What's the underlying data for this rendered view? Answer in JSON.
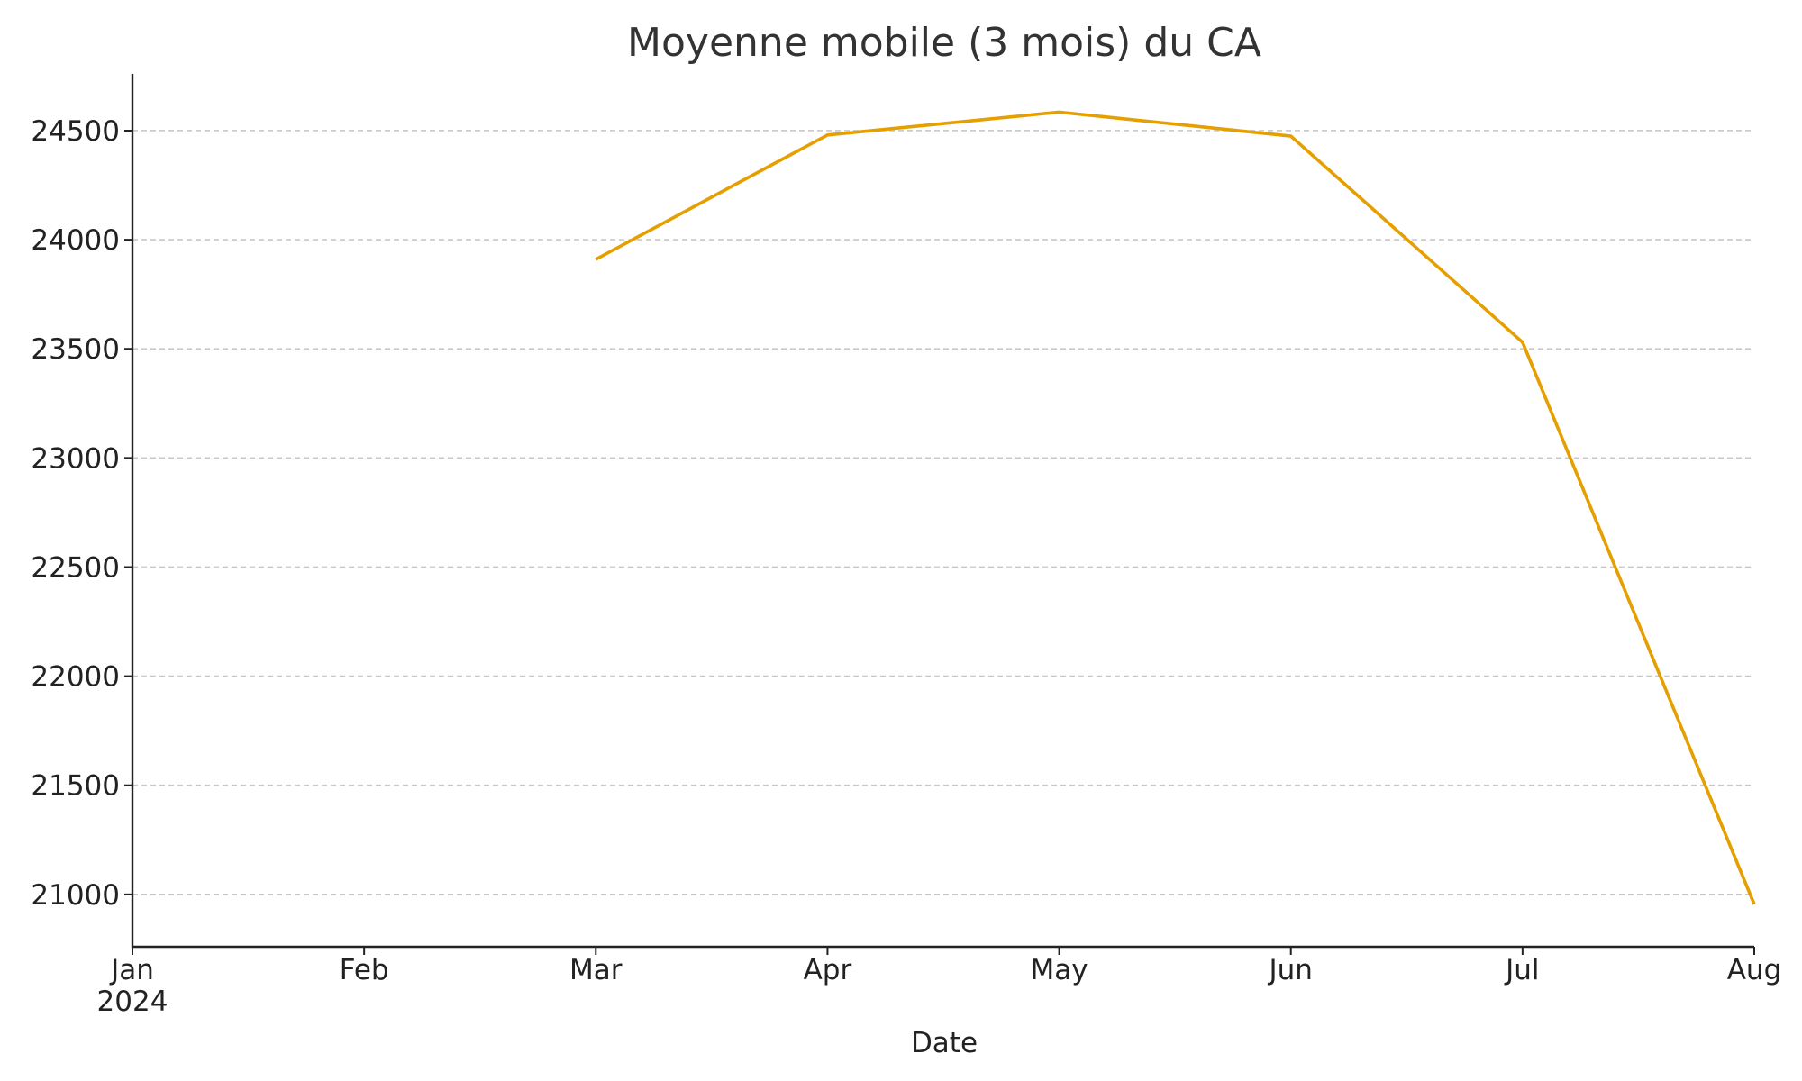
{
  "chart_data": {
    "type": "line",
    "title": "Moyenne mobile (3 mois) du CA",
    "xlabel": "Date",
    "ylabel": "",
    "x_ticks": [
      {
        "date": "2024-01",
        "label": "Jan",
        "sublabel": "2024"
      },
      {
        "date": "2024-02",
        "label": "Feb",
        "sublabel": ""
      },
      {
        "date": "2024-03",
        "label": "Mar",
        "sublabel": ""
      },
      {
        "date": "2024-04",
        "label": "Apr",
        "sublabel": ""
      },
      {
        "date": "2024-05",
        "label": "May",
        "sublabel": ""
      },
      {
        "date": "2024-06",
        "label": "Jun",
        "sublabel": ""
      },
      {
        "date": "2024-07",
        "label": "Jul",
        "sublabel": ""
      },
      {
        "date": "2024-08",
        "label": "Aug",
        "sublabel": ""
      }
    ],
    "xlim": [
      "2024-01",
      "2024-08"
    ],
    "ylim": [
      20760,
      24760
    ],
    "y_ticks": [
      21000,
      21500,
      22000,
      22500,
      23000,
      23500,
      24000,
      24500
    ],
    "grid": "horizontal-dashed",
    "series": [
      {
        "color": "#E69F00",
        "points": [
          {
            "x": "2024-03",
            "y": 23910
          },
          {
            "x": "2024-04",
            "y": 24480
          },
          {
            "x": "2024-05",
            "y": 24585
          },
          {
            "x": "2024-06",
            "y": 24475
          },
          {
            "x": "2024-07",
            "y": 23530
          },
          {
            "x": "2024-08",
            "y": 20955
          }
        ]
      }
    ]
  }
}
